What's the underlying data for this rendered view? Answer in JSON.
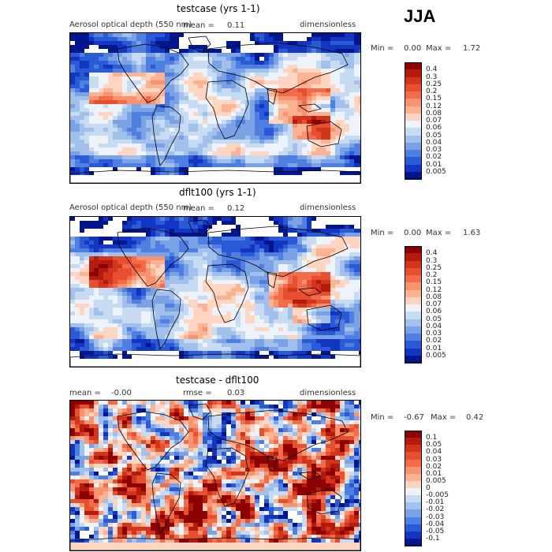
{
  "season": "JJA",
  "panels": [
    {
      "title": "testcase (yrs 1-1)",
      "variable": "Aerosol optical depth (550 nm)",
      "mean_label": "mean =",
      "mean_value": "0.11",
      "units": "dimensionless",
      "min_label": "Min =",
      "min_value": "0.00",
      "max_label": "Max =",
      "max_value": "1.72"
    },
    {
      "title": "dflt100 (yrs 1-1)",
      "variable": "Aerosol optical depth (550 nm)",
      "mean_label": "mean =",
      "mean_value": "0.12",
      "units": "dimensionless",
      "min_label": "Min =",
      "min_value": "0.00",
      "max_label": "Max =",
      "max_value": "1.63"
    },
    {
      "title": "testcase - dflt100",
      "mean_label": "mean =",
      "mean_value": "-0.00",
      "rmse_label": "rmse =",
      "rmse_value": "0.03",
      "units": "dimensionless",
      "min_label": "Min =",
      "min_value": "-0.67",
      "max_label": "Max =",
      "max_value": "0.42"
    }
  ],
  "chart_data": [
    {
      "type": "heatmap",
      "title": "testcase (yrs 1-1)",
      "field": "Aerosol optical depth (550 nm)",
      "units": "dimensionless",
      "mean": 0.11,
      "min": 0.0,
      "max": 1.72,
      "colorbar_levels": [
        "0.4",
        "0.3",
        "0.25",
        "0.2",
        "0.15",
        "0.12",
        "0.08",
        "0.07",
        "0.06",
        "0.05",
        "0.04",
        "0.03",
        "0.02",
        "0.01",
        "0.005"
      ],
      "colorbar_colors": [
        "#8b0000",
        "#b31b0c",
        "#d2341c",
        "#e6502f",
        "#f26b4a",
        "#f7936e",
        "#fbb394",
        "#fdd5c0",
        "#eef2fb",
        "#c7dbf2",
        "#a1c0ec",
        "#7aa2e5",
        "#4f7fe0",
        "#2a5ad6",
        "#1236c2",
        "#00168e"
      ]
    },
    {
      "type": "heatmap",
      "title": "dflt100 (yrs 1-1)",
      "field": "Aerosol optical depth (550 nm)",
      "units": "dimensionless",
      "mean": 0.12,
      "min": 0.0,
      "max": 1.63,
      "colorbar_levels": [
        "0.4",
        "0.3",
        "0.25",
        "0.2",
        "0.15",
        "0.12",
        "0.08",
        "0.07",
        "0.06",
        "0.05",
        "0.04",
        "0.03",
        "0.02",
        "0.01",
        "0.005"
      ],
      "colorbar_colors": [
        "#8b0000",
        "#b31b0c",
        "#d2341c",
        "#e6502f",
        "#f26b4a",
        "#f7936e",
        "#fbb394",
        "#fdd5c0",
        "#eef2fb",
        "#c7dbf2",
        "#a1c0ec",
        "#7aa2e5",
        "#4f7fe0",
        "#2a5ad6",
        "#1236c2",
        "#00168e"
      ]
    },
    {
      "type": "heatmap",
      "title": "testcase - dflt100",
      "units": "dimensionless",
      "mean": -0.0,
      "rmse": 0.03,
      "min": -0.67,
      "max": 0.42,
      "colorbar_levels": [
        "0.1",
        "0.05",
        "0.04",
        "0.03",
        "0.02",
        "0.01",
        "0.005",
        "0",
        "-0.005",
        "-0.01",
        "-0.02",
        "-0.03",
        "-0.04",
        "-0.05",
        "-0.1"
      ],
      "colorbar_colors": [
        "#8b0000",
        "#b31b0c",
        "#d2341c",
        "#e6502f",
        "#f26b4a",
        "#f7936e",
        "#fbb394",
        "#fdd5c0",
        "#eef2fb",
        "#c7dbf2",
        "#a1c0ec",
        "#7aa2e5",
        "#4f7fe0",
        "#2a5ad6",
        "#1236c2",
        "#00168e"
      ]
    }
  ]
}
